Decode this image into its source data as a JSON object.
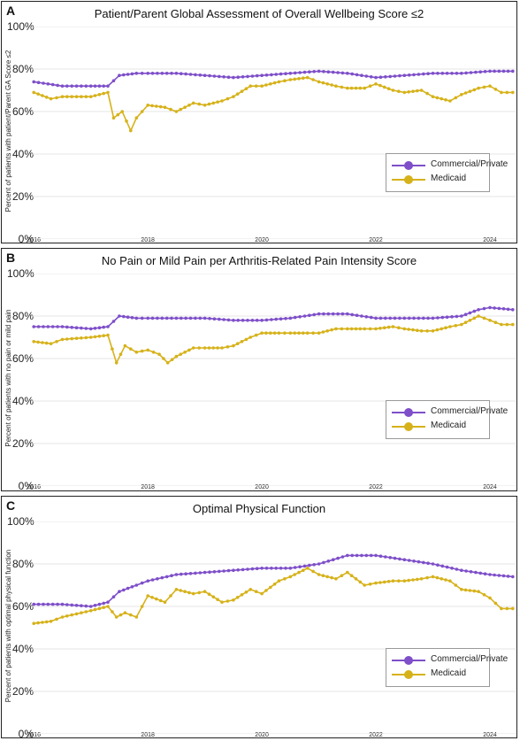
{
  "colors": {
    "commercial": "#7e4fc9",
    "medicaid": "#d6b21a",
    "grid": "#e6e6e6"
  },
  "y_ticks": [
    "0%",
    "20%",
    "40%",
    "60%",
    "80%",
    "100%"
  ],
  "x_ticks": [
    "2016",
    "2018",
    "2020",
    "2022",
    "2024"
  ],
  "legend": {
    "commercial": "Commercial/Private",
    "medicaid": "Medicaid"
  },
  "panels": [
    {
      "letter": "A",
      "title": "Patient/Parent Global Assessment of Overall Wellbeing Score ≤2",
      "ylabel": "Percent of patients with patient/Parent GA Score ≤2"
    },
    {
      "letter": "B",
      "title": "No Pain or Mild Pain per Arthritis-Related Pain Intensity Score",
      "ylabel": "Percent of patients with no pain or mild pain"
    },
    {
      "letter": "C",
      "title": "Optimal Physical Function",
      "ylabel": "Percent of patients with optimal physical function"
    }
  ],
  "chart_data": [
    {
      "type": "line",
      "title": "Patient/Parent Global Assessment of Overall Wellbeing Score ≤2",
      "ylabel": "Percent of patients with patient/Parent GA Score ≤2",
      "ylim": [
        0,
        100
      ],
      "xlim": [
        2016,
        2024.4
      ],
      "grid": true,
      "legend": "bottom-right",
      "series": [
        {
          "name": "Commercial/Private",
          "x": [
            2016,
            2016.5,
            2017,
            2017.3,
            2017.5,
            2017.8,
            2018,
            2018.5,
            2019,
            2019.5,
            2020,
            2020.5,
            2021,
            2021.5,
            2022,
            2022.5,
            2023,
            2023.5,
            2024,
            2024.4
          ],
          "y": [
            74,
            72,
            72,
            72,
            77,
            78,
            78,
            78,
            77,
            76,
            77,
            78,
            79,
            78,
            76,
            77,
            78,
            78,
            79,
            79
          ]
        },
        {
          "name": "Medicaid",
          "x": [
            2016,
            2016.3,
            2016.5,
            2017,
            2017.3,
            2017.4,
            2017.55,
            2017.7,
            2017.8,
            2018,
            2018.3,
            2018.5,
            2018.8,
            2019,
            2019.3,
            2019.5,
            2019.8,
            2020,
            2020.3,
            2020.5,
            2020.8,
            2021,
            2021.3,
            2021.5,
            2021.8,
            2022,
            2022.3,
            2022.5,
            2022.8,
            2023,
            2023.3,
            2023.5,
            2023.8,
            2024,
            2024.2,
            2024.4
          ],
          "y": [
            69,
            66,
            67,
            67,
            69,
            57,
            60,
            51,
            57,
            63,
            62,
            60,
            64,
            63,
            65,
            67,
            72,
            72,
            74,
            75,
            76,
            74,
            72,
            71,
            71,
            73,
            70,
            69,
            70,
            67,
            65,
            68,
            71,
            72,
            69,
            69
          ]
        }
      ]
    },
    {
      "type": "line",
      "title": "No Pain or Mild Pain per Arthritis-Related Pain Intensity Score",
      "ylabel": "Percent of patients with no pain or mild pain",
      "ylim": [
        0,
        100
      ],
      "xlim": [
        2016,
        2024.4
      ],
      "grid": true,
      "legend": "bottom-right",
      "series": [
        {
          "name": "Commercial/Private",
          "x": [
            2016,
            2016.5,
            2017,
            2017.3,
            2017.5,
            2017.8,
            2018,
            2018.5,
            2019,
            2019.5,
            2020,
            2020.5,
            2021,
            2021.5,
            2022,
            2022.5,
            2023,
            2023.5,
            2023.8,
            2024,
            2024.4
          ],
          "y": [
            75,
            75,
            74,
            75,
            80,
            79,
            79,
            79,
            79,
            78,
            78,
            79,
            81,
            81,
            79,
            79,
            79,
            80,
            83,
            84,
            83
          ]
        },
        {
          "name": "Medicaid",
          "x": [
            2016,
            2016.3,
            2016.5,
            2017,
            2017.3,
            2017.45,
            2017.6,
            2017.8,
            2018,
            2018.2,
            2018.35,
            2018.5,
            2018.8,
            2019,
            2019.3,
            2019.5,
            2019.8,
            2020,
            2020.3,
            2020.5,
            2020.8,
            2021,
            2021.3,
            2021.5,
            2021.8,
            2022,
            2022.3,
            2022.5,
            2022.8,
            2023,
            2023.3,
            2023.5,
            2023.8,
            2024,
            2024.2,
            2024.4
          ],
          "y": [
            68,
            67,
            69,
            70,
            71,
            58,
            66,
            63,
            64,
            62,
            58,
            61,
            65,
            65,
            65,
            66,
            70,
            72,
            72,
            72,
            72,
            72,
            74,
            74,
            74,
            74,
            75,
            74,
            73,
            73,
            75,
            76,
            80,
            78,
            76,
            76
          ]
        }
      ]
    },
    {
      "type": "line",
      "title": "Optimal Physical Function",
      "ylabel": "Percent of patients with optimal physical function",
      "ylim": [
        0,
        100
      ],
      "xlim": [
        2016,
        2024.4
      ],
      "grid": true,
      "legend": "bottom-right",
      "series": [
        {
          "name": "Commercial/Private",
          "x": [
            2016,
            2016.5,
            2017,
            2017.3,
            2017.5,
            2017.8,
            2018,
            2018.5,
            2019,
            2019.5,
            2020,
            2020.5,
            2021,
            2021.5,
            2022,
            2022.5,
            2023,
            2023.5,
            2024,
            2024.4
          ],
          "y": [
            61,
            61,
            60,
            62,
            67,
            70,
            72,
            75,
            76,
            77,
            78,
            78,
            80,
            84,
            84,
            82,
            80,
            77,
            75,
            74
          ]
        },
        {
          "name": "Medicaid",
          "x": [
            2016,
            2016.3,
            2016.5,
            2017,
            2017.3,
            2017.45,
            2017.6,
            2017.8,
            2018,
            2018.3,
            2018.5,
            2018.8,
            2019,
            2019.3,
            2019.5,
            2019.8,
            2020,
            2020.3,
            2020.5,
            2020.8,
            2021,
            2021.3,
            2021.5,
            2021.8,
            2022,
            2022.3,
            2022.5,
            2022.8,
            2023,
            2023.3,
            2023.5,
            2023.8,
            2024,
            2024.2,
            2024.4
          ],
          "y": [
            52,
            53,
            55,
            58,
            60,
            55,
            57,
            55,
            65,
            62,
            68,
            66,
            67,
            62,
            63,
            68,
            66,
            72,
            74,
            78,
            75,
            73,
            76,
            70,
            71,
            72,
            72,
            73,
            74,
            72,
            68,
            67,
            64,
            59,
            59
          ]
        }
      ]
    }
  ]
}
